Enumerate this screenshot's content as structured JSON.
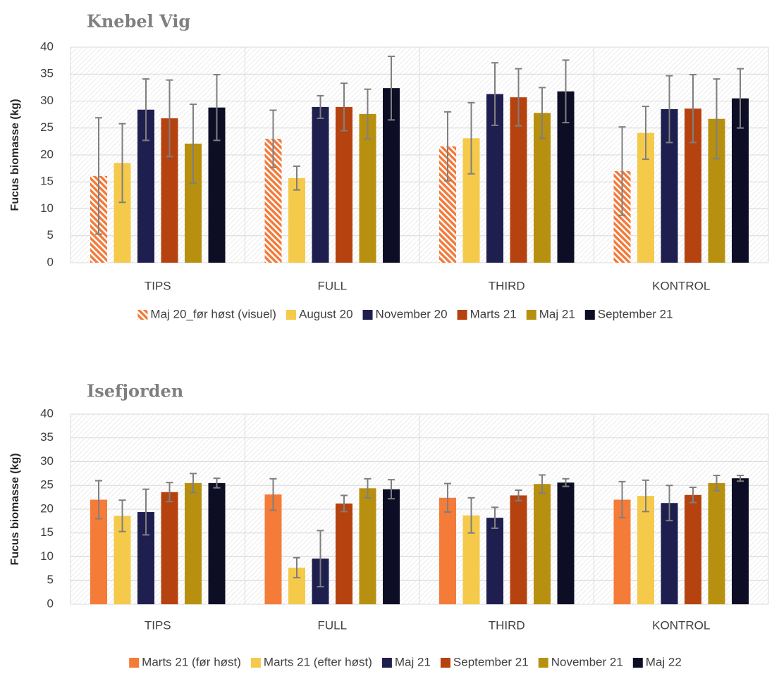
{
  "chart_data": [
    {
      "type": "bar",
      "title": "Knebel Vig",
      "y_label": "Fucus biomasse (kg)",
      "categories": [
        "TIPS",
        "FULL",
        "THIRD",
        "KONTROL"
      ],
      "ylim": [
        0,
        40
      ],
      "yticks": [
        0,
        5,
        10,
        15,
        20,
        25,
        30,
        35,
        40
      ],
      "grid": true,
      "legend": "bottom",
      "series": [
        {
          "name": "Maj 20_før høst (visuel)",
          "color": "#f47a3a",
          "hatch": true,
          "values": [
            16.1,
            23.0,
            21.6,
            17.0
          ],
          "errors": [
            10.8,
            5.3,
            6.4,
            8.2
          ]
        },
        {
          "name": "August 20",
          "color": "#f5ca4a",
          "values": [
            18.5,
            15.7,
            23.1,
            24.1
          ],
          "errors": [
            7.3,
            2.2,
            6.6,
            4.9
          ]
        },
        {
          "name": "November 20",
          "color": "#1e1e4f",
          "values": [
            28.4,
            28.9,
            31.3,
            28.5
          ],
          "errors": [
            5.7,
            2.1,
            5.8,
            6.2
          ]
        },
        {
          "name": "Marts 21",
          "color": "#b5420f",
          "values": [
            26.8,
            28.9,
            30.7,
            28.6
          ],
          "errors": [
            7.1,
            4.4,
            5.3,
            6.3
          ]
        },
        {
          "name": "Maj 21",
          "color": "#b8900f",
          "values": [
            22.1,
            27.6,
            27.8,
            26.7
          ],
          "errors": [
            7.3,
            4.6,
            4.7,
            7.4
          ]
        },
        {
          "name": "September 21",
          "color": "#0d0d26",
          "values": [
            28.8,
            32.4,
            31.8,
            30.5
          ],
          "errors": [
            6.1,
            5.9,
            5.8,
            5.5
          ]
        }
      ]
    },
    {
      "type": "bar",
      "title": "Isefjorden",
      "y_label": "Fucus biomasse (kg)",
      "categories": [
        "TIPS",
        "FULL",
        "THIRD",
        "KONTROL"
      ],
      "ylim": [
        0,
        40
      ],
      "yticks": [
        0,
        5,
        10,
        15,
        20,
        25,
        30,
        35,
        40
      ],
      "grid": true,
      "legend": "bottom",
      "series": [
        {
          "name": "Marts 21 (før høst)",
          "color": "#f57b38",
          "values": [
            22.0,
            23.1,
            22.4,
            22.0
          ],
          "errors": [
            4.0,
            3.3,
            3.0,
            3.8
          ]
        },
        {
          "name": "Marts 21 (efter høst)",
          "color": "#f5ca4a",
          "values": [
            18.6,
            7.7,
            18.7,
            22.8
          ],
          "errors": [
            3.3,
            2.1,
            3.7,
            3.3
          ]
        },
        {
          "name": "Maj 21",
          "color": "#1e1e4f",
          "values": [
            19.4,
            9.6,
            18.2,
            21.3
          ],
          "errors": [
            4.8,
            5.9,
            2.2,
            3.7
          ]
        },
        {
          "name": "September 21",
          "color": "#b5420f",
          "values": [
            23.6,
            21.2,
            22.9,
            23.0
          ],
          "errors": [
            2.0,
            1.7,
            1.1,
            1.6
          ]
        },
        {
          "name": "November 21",
          "color": "#b8900f",
          "values": [
            25.5,
            24.4,
            25.3,
            25.5
          ],
          "errors": [
            2.0,
            2.0,
            1.9,
            1.6
          ]
        },
        {
          "name": "Maj 22",
          "color": "#0d0d26",
          "values": [
            25.5,
            24.2,
            25.6,
            26.5
          ],
          "errors": [
            1.0,
            2.0,
            0.8,
            0.6
          ]
        }
      ]
    }
  ]
}
